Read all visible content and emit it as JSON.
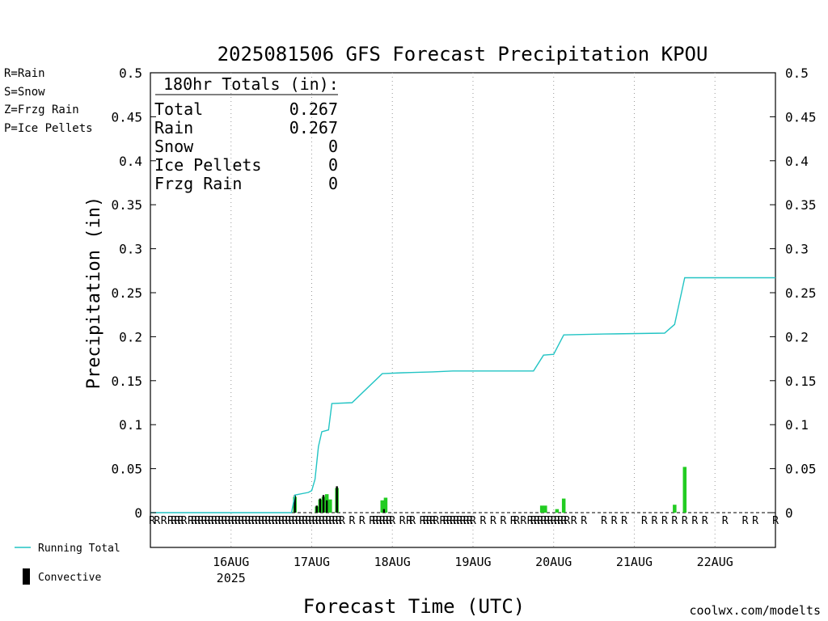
{
  "colors": {
    "rain": "#22cc22",
    "snow": "#3344ee",
    "frzg": "#ee8833",
    "ice": "#ee1199",
    "running_total": "#22c4c4",
    "convective": "#000000",
    "credit": "#dd2222"
  },
  "chart_data": {
    "type": "bar",
    "title": "2025081506 GFS Forecast Precipitation KPOU",
    "ylabel": "Precipitation (in)",
    "xlabel": "Forecast Time (UTC)",
    "ylim": [
      0,
      0.5
    ],
    "y_ticks": [
      "0",
      "0.05",
      "0.1",
      "0.15",
      "0.2",
      "0.25",
      "0.3",
      "0.35",
      "0.4",
      "0.45",
      "0.5"
    ],
    "x_range_hours": [
      -6,
      180
    ],
    "x_ticks": [
      {
        "hour": 18,
        "label": "16AUG",
        "sublabel": "2025"
      },
      {
        "hour": 42,
        "label": "17AUG"
      },
      {
        "hour": 66,
        "label": "18AUG"
      },
      {
        "hour": 90,
        "label": "19AUG"
      },
      {
        "hour": 114,
        "label": "20AUG"
      },
      {
        "hour": 138,
        "label": "21AUG"
      },
      {
        "hour": 162,
        "label": "22AUG"
      }
    ],
    "grid": "vertical dotted at day boundaries",
    "legend": {
      "types": [
        {
          "label": "R=Rain",
          "color_key": "rain"
        },
        {
          "label": "S=Snow",
          "color_key": "snow"
        },
        {
          "label": "Z=Frzg Rain",
          "color_key": "frzg"
        },
        {
          "label": "P=Ice Pellets",
          "color_key": "ice"
        }
      ],
      "running_total": "Running Total",
      "convective": "Convective",
      "placement": "left"
    },
    "totals": {
      "header": "180hr Totals (in):",
      "rows": [
        {
          "label": "Total",
          "value": "0.267"
        },
        {
          "label": "Rain",
          "value": "0.267"
        },
        {
          "label": "Snow",
          "value": "0"
        },
        {
          "label": "Ice Pellets",
          "value": "0"
        },
        {
          "label": "Frzg Rain",
          "value": "0"
        }
      ]
    },
    "series": [
      {
        "name": "Running Total",
        "points": [
          [
            -6,
            0
          ],
          [
            36,
            0
          ],
          [
            37,
            0.02
          ],
          [
            41,
            0.023
          ],
          [
            42,
            0.025
          ],
          [
            43,
            0.038
          ],
          [
            44,
            0.075
          ],
          [
            45,
            0.092
          ],
          [
            47,
            0.094
          ],
          [
            48,
            0.124
          ],
          [
            54,
            0.125
          ],
          [
            63,
            0.158
          ],
          [
            69,
            0.159
          ],
          [
            78,
            0.16
          ],
          [
            84,
            0.161
          ],
          [
            108,
            0.161
          ],
          [
            111,
            0.179
          ],
          [
            114,
            0.18
          ],
          [
            117,
            0.202
          ],
          [
            129,
            0.203
          ],
          [
            147,
            0.204
          ],
          [
            150,
            0.214
          ],
          [
            153,
            0.267
          ],
          [
            180,
            0.267
          ]
        ]
      }
    ],
    "bars": [
      {
        "hour": 37,
        "value": 0.018
      },
      {
        "hour": 43.5,
        "value": 0.007
      },
      {
        "hour": 44.5,
        "value": 0.015
      },
      {
        "hour": 45.5,
        "value": 0.018
      },
      {
        "hour": 46.5,
        "value": 0.021
      },
      {
        "hour": 47.5,
        "value": 0.015
      },
      {
        "hour": 49.5,
        "value": 0.028
      },
      {
        "hour": 63,
        "value": 0.014
      },
      {
        "hour": 64,
        "value": 0.017
      },
      {
        "hour": 110.5,
        "value": 0.008
      },
      {
        "hour": 111.5,
        "value": 0.008
      },
      {
        "hour": 115,
        "value": 0.004
      },
      {
        "hour": 117,
        "value": 0.016
      },
      {
        "hour": 150,
        "value": 0.009
      },
      {
        "hour": 153,
        "value": 0.052
      }
    ],
    "convective_bars": [
      {
        "hour": 37,
        "value": 0.02
      },
      {
        "hour": 43.5,
        "value": 0.008
      },
      {
        "hour": 44.5,
        "value": 0.016
      },
      {
        "hour": 45.5,
        "value": 0.02
      },
      {
        "hour": 46.5,
        "value": 0.014
      },
      {
        "hour": 49.5,
        "value": 0.03
      },
      {
        "hour": 63.5,
        "value": 0.004
      }
    ],
    "type_markers": {
      "letter": "R",
      "hours": [
        -5.5,
        -4,
        -2,
        0,
        1,
        2,
        3,
        4,
        6,
        7,
        8,
        9,
        10,
        11,
        12,
        13,
        14,
        15,
        16,
        17,
        18,
        19,
        20,
        21,
        22,
        23,
        24,
        25,
        26,
        27,
        28,
        29,
        30,
        31,
        32,
        33,
        34,
        35,
        36,
        37,
        38,
        39,
        40,
        41,
        42,
        43,
        44,
        45,
        46,
        47,
        48,
        49,
        50,
        51,
        54,
        57,
        60,
        61,
        62,
        63,
        64,
        65,
        66,
        69,
        71,
        72,
        75,
        76,
        77,
        78,
        79,
        81,
        82,
        83,
        84,
        85,
        86,
        87,
        88,
        89,
        90,
        93,
        96,
        99,
        102,
        103,
        105,
        107,
        108,
        109,
        110,
        111,
        112,
        113,
        114,
        115,
        116,
        117,
        118,
        120,
        123,
        129,
        132,
        135,
        141,
        144,
        147,
        150,
        153,
        156,
        159,
        165,
        171,
        174,
        180
      ]
    }
  },
  "credit": "coolwx.com/modelts"
}
